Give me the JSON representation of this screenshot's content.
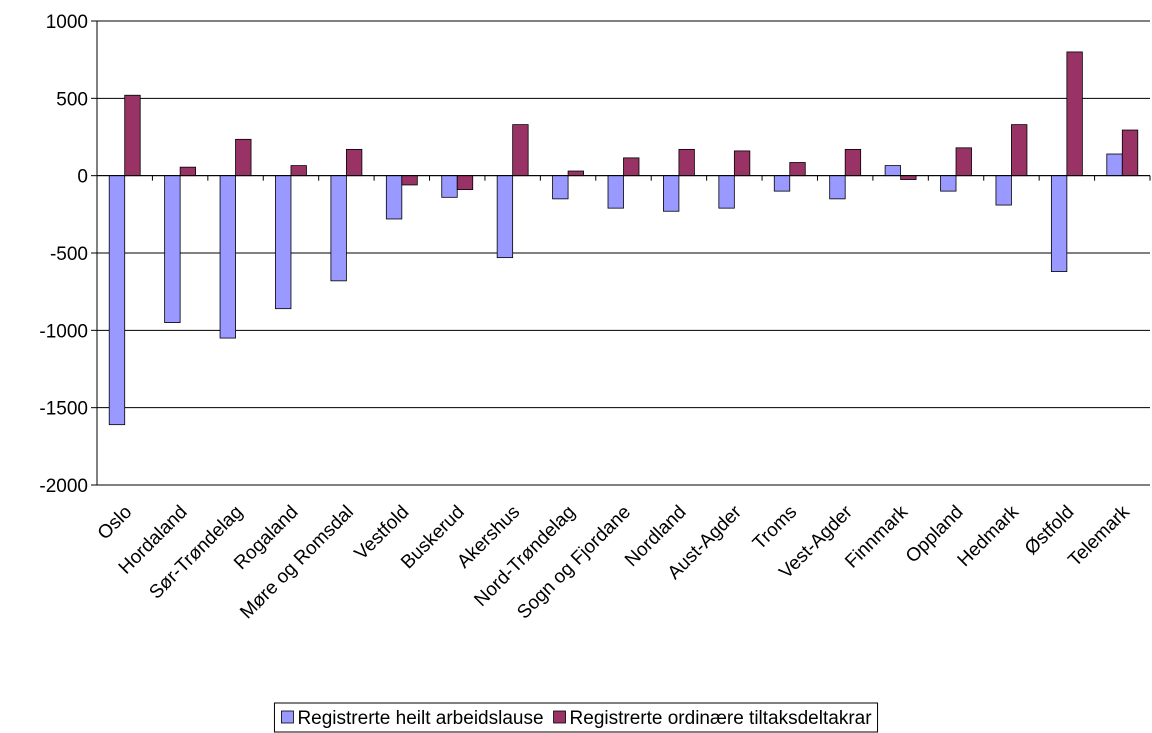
{
  "chart_data": {
    "type": "bar",
    "categories": [
      "Oslo",
      "Hordaland",
      "Sør-Trøndelag",
      "Rogaland",
      "Møre og Romsdal",
      "Vestfold",
      "Buskerud",
      "Akershus",
      "Nord-Trøndelag",
      "Sogn og Fjordane",
      "Nordland",
      "Aust-Agder",
      "Troms",
      "Vest-Agder",
      "Finnmark",
      "Oppland",
      "Hedmark",
      "Østfold",
      "Telemark"
    ],
    "series": [
      {
        "name": "Registrerte heilt arbeidslause",
        "color": "#9999ff",
        "values": [
          -1610,
          -950,
          -1050,
          -860,
          -680,
          -280,
          -140,
          -530,
          -150,
          -210,
          -230,
          -210,
          -100,
          -150,
          65,
          -100,
          -190,
          -620,
          140
        ]
      },
      {
        "name": "Registrerte ordinære tiltaksdeltakrar",
        "color": "#993366",
        "values": [
          520,
          55,
          235,
          65,
          170,
          -60,
          -90,
          330,
          30,
          115,
          170,
          160,
          85,
          170,
          -25,
          180,
          330,
          800,
          295
        ]
      }
    ],
    "ylim": [
      -2000,
      1000
    ],
    "yticks": [
      -2000,
      -1500,
      -1000,
      -500,
      0,
      500,
      1000
    ],
    "grid": true,
    "legend": "bottom"
  }
}
